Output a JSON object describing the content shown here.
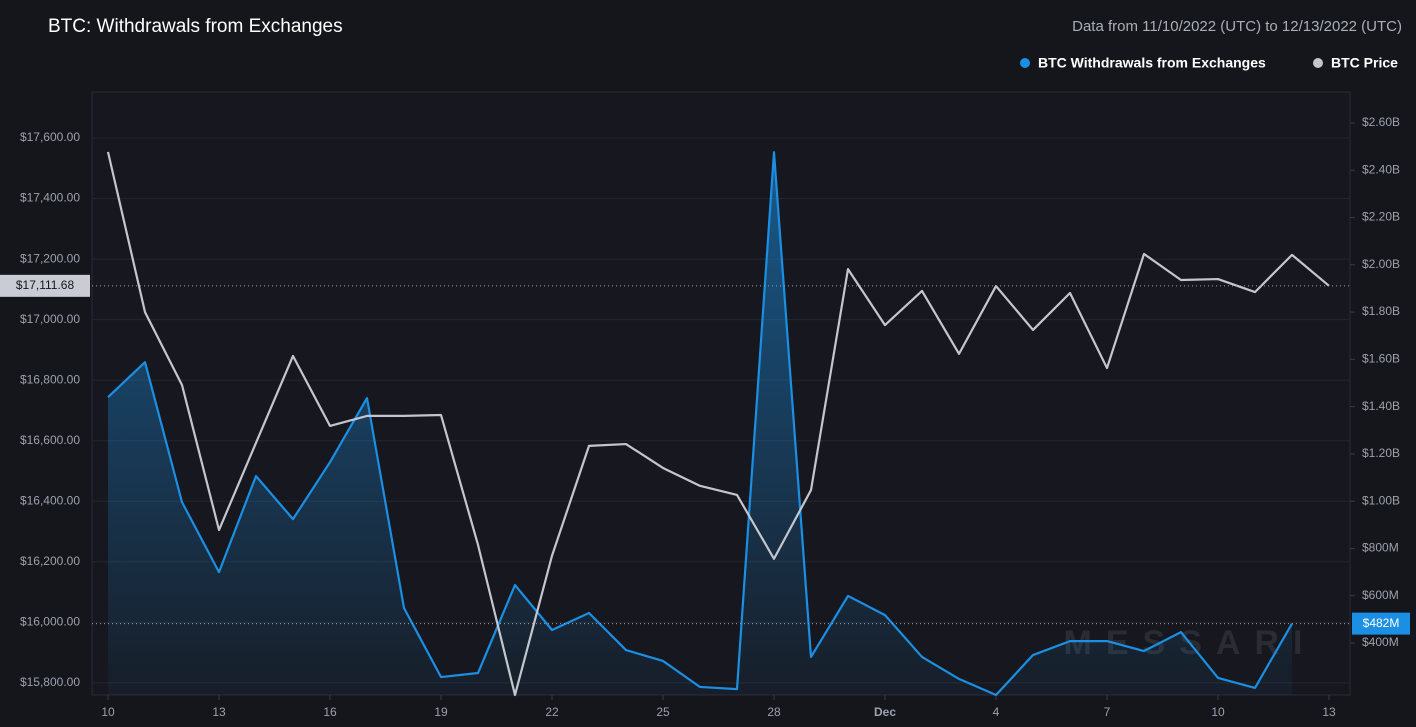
{
  "chart_data": {
    "type": "line",
    "title": "BTC: Withdrawals from Exchanges",
    "subtitle": "Data from 11/10/2022 (UTC) to 12/13/2022 (UTC)",
    "watermark": "MESSARI",
    "categories": [
      "10",
      null,
      null,
      "13",
      null,
      null,
      "16",
      null,
      null,
      "19",
      null,
      null,
      "22",
      null,
      null,
      "25",
      null,
      null,
      "28",
      null,
      null,
      "Dec",
      null,
      null,
      "4",
      null,
      null,
      "7",
      null,
      null,
      "10",
      null,
      null,
      "13"
    ],
    "series": [
      {
        "name": "BTC Withdrawals from Exchanges",
        "color": "#1a8fe3",
        "axis": "y2",
        "area": true,
        "values": [
          1440,
          1588,
          996,
          700,
          1106,
          924,
          1165,
          1436,
          548,
          256,
          273,
          645,
          455,
          527,
          370,
          324,
          214,
          205,
          2476,
          341,
          599,
          518,
          341,
          248,
          180,
          349,
          408,
          408,
          366,
          446,
          252,
          210,
          482,
          null
        ]
      },
      {
        "name": "BTC Price",
        "color": "#c4c6ce",
        "axis": "y",
        "values": [
          17554,
          17025,
          16784,
          16305,
          16593,
          16880,
          16649,
          16682,
          16682,
          16685,
          16256,
          15760,
          16220,
          16583,
          16589,
          16510,
          16451,
          16421,
          16210,
          16437,
          17167,
          16982,
          17095,
          16887,
          17111,
          16966,
          17088,
          16840,
          17217,
          17131,
          17134,
          17091,
          17214,
          17111.68
        ]
      }
    ],
    "ylim": [
      15760,
      17752
    ],
    "yticks": [
      {
        "value": 15800,
        "label": "$15,800.00"
      },
      {
        "value": 16000,
        "label": "$16,000.00"
      },
      {
        "value": 16200,
        "label": "$16,200.00"
      },
      {
        "value": 16400,
        "label": "$16,400.00"
      },
      {
        "value": 16600,
        "label": "$16,600.00"
      },
      {
        "value": 16800,
        "label": "$16,800.00"
      },
      {
        "value": 17000,
        "label": "$17,000.00"
      },
      {
        "value": 17200,
        "label": "$17,200.00"
      },
      {
        "value": 17400,
        "label": "$17,400.00"
      },
      {
        "value": 17600,
        "label": "$17,600.00"
      }
    ],
    "y2lim": [
      180,
      2731
    ],
    "y2ticks": [
      {
        "value": 400,
        "label": "$400M"
      },
      {
        "value": 600,
        "label": "$600M"
      },
      {
        "value": 800,
        "label": "$800M"
      },
      {
        "value": 1000,
        "label": "$1.00B"
      },
      {
        "value": 1200,
        "label": "$1.20B"
      },
      {
        "value": 1400,
        "label": "$1.40B"
      },
      {
        "value": 1600,
        "label": "$1.60B"
      },
      {
        "value": 1800,
        "label": "$1.80B"
      },
      {
        "value": 2000,
        "label": "$2.00B"
      },
      {
        "value": 2200,
        "label": "$2.20B"
      },
      {
        "value": 2400,
        "label": "$2.40B"
      },
      {
        "value": 2600,
        "label": "$2.60B"
      }
    ],
    "markers": [
      {
        "value": 17111.68,
        "label": "$17,111.68",
        "axis": "y"
      },
      {
        "value": 482,
        "label": "$482M",
        "axis": "y2"
      }
    ],
    "grid": true
  }
}
